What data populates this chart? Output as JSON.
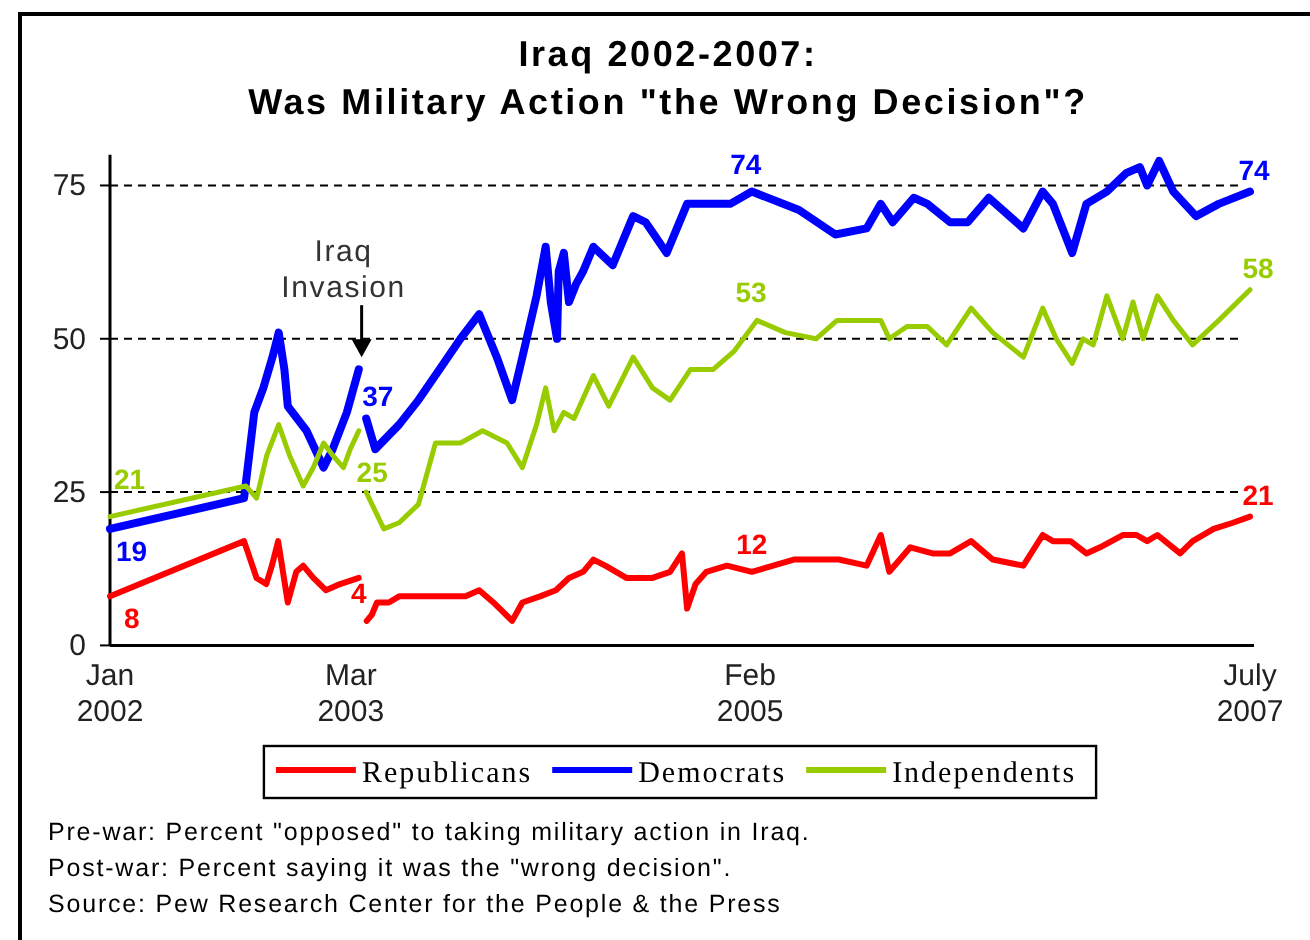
{
  "chart_data": {
    "type": "line",
    "title": "Iraq 2002-2007:\nWas Military Action \"the Wrong Decision\"?",
    "xlim": [
      "2002-01",
      "2007-07"
    ],
    "xticks": [
      {
        "value": "2002-01",
        "label": "Jan\n2002"
      },
      {
        "value": "2003-03",
        "label": "Mar\n2003"
      },
      {
        "value": "2005-02",
        "label": "Feb\n2005"
      },
      {
        "value": "2007-07",
        "label": "July\n2007"
      }
    ],
    "ylim": [
      0,
      80
    ],
    "yticks": [
      0,
      25,
      50,
      75
    ],
    "grid": "y",
    "legend": "bottom",
    "series": [
      {
        "name": "Republicans",
        "color": "#ff0000",
        "x": [
          "2002-01-01",
          "2002-08-25",
          "2002-09-16",
          "2002-10-03",
          "2002-10-13",
          "2002-10-24",
          "2002-11-10",
          "2002-11-25",
          "2002-12-07",
          "2002-12-25",
          "2003-01-16",
          "2003-02-10",
          "2003-03-15",
          "2003-03-20",
          "2003-03-29",
          "2003-04-07",
          "2003-04-16",
          "2003-05-07",
          "2003-05-25",
          "2003-07-10",
          "2003-09-19",
          "2003-10-13",
          "2003-11-07",
          "2003-12-10",
          "2003-12-28",
          "2004-01-28",
          "2004-02-25",
          "2004-03-19",
          "2004-04-13",
          "2004-05-01",
          "2004-05-22",
          "2004-06-28",
          "2004-08-13",
          "2004-09-13",
          "2004-10-04",
          "2004-10-13",
          "2004-10-28",
          "2004-11-16",
          "2004-12-22",
          "2005-02-04",
          "2005-04-19",
          "2005-07-07",
          "2005-08-25",
          "2005-09-19",
          "2005-10-04",
          "2005-11-10",
          "2005-12-19",
          "2006-01-19",
          "2006-02-25",
          "2006-04-04",
          "2006-05-28",
          "2006-07-01",
          "2006-07-19",
          "2006-08-19",
          "2006-09-16",
          "2006-10-10",
          "2006-11-19",
          "2006-12-13",
          "2007-01-01",
          "2007-01-19",
          "2007-02-28",
          "2007-03-22",
          "2007-04-28",
          "2007-06-01",
          "2007-07-01"
        ],
        "values": [
          8,
          17,
          11,
          10,
          13,
          17,
          7,
          12,
          13,
          11,
          9,
          10,
          11,
          null,
          4,
          5,
          7,
          7,
          8,
          8,
          8,
          9,
          7,
          4,
          7,
          8,
          9,
          11,
          12,
          14,
          13,
          11,
          11,
          12,
          15,
          6,
          10,
          12,
          13,
          12,
          14,
          14,
          13,
          18,
          12,
          16,
          15,
          15,
          17,
          14,
          13,
          18,
          17,
          17,
          15,
          16,
          18,
          18,
          17,
          18,
          15,
          17,
          19,
          20,
          21
        ],
        "value_labels": [
          "8",
          null,
          null,
          null,
          null,
          null,
          null,
          null,
          null,
          null,
          null,
          null,
          null,
          null,
          "4",
          null,
          null,
          null,
          null,
          null,
          null,
          null,
          null,
          null,
          null,
          null,
          null,
          null,
          null,
          null,
          null,
          null,
          null,
          null,
          null,
          null,
          null,
          null,
          null,
          "12",
          null,
          null,
          null,
          null,
          null,
          null,
          null,
          null,
          null,
          null,
          null,
          null,
          null,
          null,
          null,
          null,
          null,
          null,
          null,
          null,
          null,
          null,
          null,
          null,
          "21"
        ]
      },
      {
        "name": "Democrats",
        "color": "#0000ff",
        "x": [
          "2002-01-01",
          "2002-08-25",
          "2002-09-12",
          "2002-09-28",
          "2002-10-14",
          "2002-10-25",
          "2002-11-04",
          "2002-11-10",
          "2002-12-13",
          "2003-01-12",
          "2003-01-28",
          "2003-02-22",
          "2003-03-15",
          "2003-03-20",
          "2003-03-28",
          "2003-04-13",
          "2003-05-25",
          "2003-06-28",
          "2003-08-04",
          "2003-09-10",
          "2003-10-13",
          "2003-11-13",
          "2003-12-10",
          "2003-12-28",
          "2004-01-22",
          "2004-02-07",
          "2004-02-16",
          "2004-02-27",
          "2004-03-01",
          "2004-03-10",
          "2004-03-19",
          "2004-04-01",
          "2004-04-13",
          "2004-05-01",
          "2004-06-04",
          "2004-07-10",
          "2004-08-01",
          "2004-09-07",
          "2004-10-13",
          "2004-11-16",
          "2004-12-28",
          "2005-02-04",
          "2005-04-28",
          "2005-07-01",
          "2005-08-25",
          "2005-09-19",
          "2005-10-10",
          "2005-11-16",
          "2005-12-10",
          "2006-01-19",
          "2006-02-19",
          "2006-03-28",
          "2006-05-28",
          "2006-07-01",
          "2006-07-19",
          "2006-08-22",
          "2006-09-16",
          "2006-10-22",
          "2006-11-25",
          "2006-12-19",
          "2007-01-01",
          "2007-01-22",
          "2007-02-16",
          "2007-03-28",
          "2007-05-07",
          "2007-07-01"
        ],
        "values": [
          19,
          24,
          38,
          42,
          47,
          51,
          45,
          39,
          35,
          29,
          32,
          38,
          45,
          null,
          37,
          32,
          36,
          40,
          45,
          50,
          54,
          47,
          40,
          47,
          57,
          65,
          56,
          50,
          61,
          64,
          56,
          59,
          61,
          65,
          62,
          70,
          69,
          64,
          72,
          72,
          72,
          74,
          71,
          67,
          68,
          72,
          69,
          73,
          72,
          69,
          69,
          73,
          68,
          74,
          72,
          64,
          72,
          74,
          77,
          78,
          75,
          79,
          74,
          70,
          72,
          74
        ],
        "value_labels": [
          "19",
          null,
          null,
          null,
          null,
          null,
          null,
          null,
          null,
          null,
          null,
          null,
          null,
          null,
          "37",
          null,
          null,
          null,
          null,
          null,
          null,
          null,
          null,
          null,
          null,
          null,
          null,
          null,
          null,
          null,
          null,
          null,
          null,
          null,
          null,
          null,
          null,
          null,
          null,
          null,
          null,
          "74",
          null,
          null,
          null,
          null,
          null,
          null,
          null,
          null,
          null,
          null,
          null,
          null,
          null,
          null,
          null,
          null,
          null,
          null,
          null,
          null,
          null,
          null,
          null,
          "74"
        ]
      },
      {
        "name": "Independents",
        "color": "#99cc00",
        "x": [
          "2002-01-01",
          "2002-08-28",
          "2002-09-16",
          "2002-10-04",
          "2002-10-25",
          "2002-11-13",
          "2002-12-07",
          "2002-12-25",
          "2003-01-12",
          "2003-01-28",
          "2003-02-16",
          "2003-02-28",
          "2003-03-15",
          "2003-03-20",
          "2003-03-28",
          "2003-04-28",
          "2003-05-25",
          "2003-06-28",
          "2003-07-28",
          "2003-09-10",
          "2003-10-19",
          "2003-12-01",
          "2003-12-28",
          "2004-01-22",
          "2004-02-07",
          "2004-02-22",
          "2004-03-10",
          "2004-03-28",
          "2004-05-01",
          "2004-05-28",
          "2004-07-10",
          "2004-08-13",
          "2004-09-13",
          "2004-10-19",
          "2004-11-28",
          "2005-01-04",
          "2005-02-13",
          "2005-04-04",
          "2005-05-28",
          "2005-07-04",
          "2005-08-25",
          "2005-09-19",
          "2005-10-04",
          "2005-11-04",
          "2005-12-10",
          "2006-01-13",
          "2006-02-25",
          "2006-04-04",
          "2006-05-28",
          "2006-07-01",
          "2006-07-25",
          "2006-08-22",
          "2006-09-10",
          "2006-09-28",
          "2006-10-22",
          "2006-11-19",
          "2006-12-07",
          "2006-12-25",
          "2007-01-19",
          "2007-02-16",
          "2007-03-22",
          "2007-05-07",
          "2007-07-01"
        ],
        "values": [
          21,
          26,
          24,
          31,
          36,
          31,
          26,
          29,
          33,
          31,
          29,
          32,
          35,
          null,
          25,
          19,
          20,
          23,
          33,
          33,
          35,
          33,
          29,
          36,
          42,
          35,
          38,
          37,
          44,
          39,
          47,
          42,
          40,
          45,
          45,
          48,
          53,
          51,
          50,
          53,
          53,
          53,
          50,
          52,
          52,
          49,
          55,
          51,
          47,
          55,
          50,
          46,
          50,
          49,
          57,
          50,
          56,
          50,
          57,
          53,
          49,
          53,
          58
        ],
        "value_labels": [
          "21",
          null,
          null,
          null,
          null,
          null,
          null,
          null,
          null,
          null,
          null,
          null,
          null,
          null,
          "25",
          null,
          null,
          null,
          null,
          null,
          null,
          null,
          null,
          null,
          null,
          null,
          null,
          null,
          null,
          null,
          null,
          null,
          null,
          null,
          null,
          null,
          "53",
          null,
          null,
          null,
          null,
          null,
          null,
          null,
          null,
          null,
          null,
          null,
          null,
          null,
          null,
          null,
          null,
          null,
          null,
          null,
          null,
          null,
          null,
          null,
          null,
          null,
          "58"
        ]
      }
    ],
    "annotations": [
      {
        "text": "Iraq Invasion",
        "x": "2003-03-20",
        "y": 47
      },
      "Pre-war: Percent \"opposed\" to taking military action in Iraq.",
      "Post-war: Percent saying it was the \"wrong decision\".",
      "Source: Pew Research Center for the People & the Press"
    ]
  }
}
